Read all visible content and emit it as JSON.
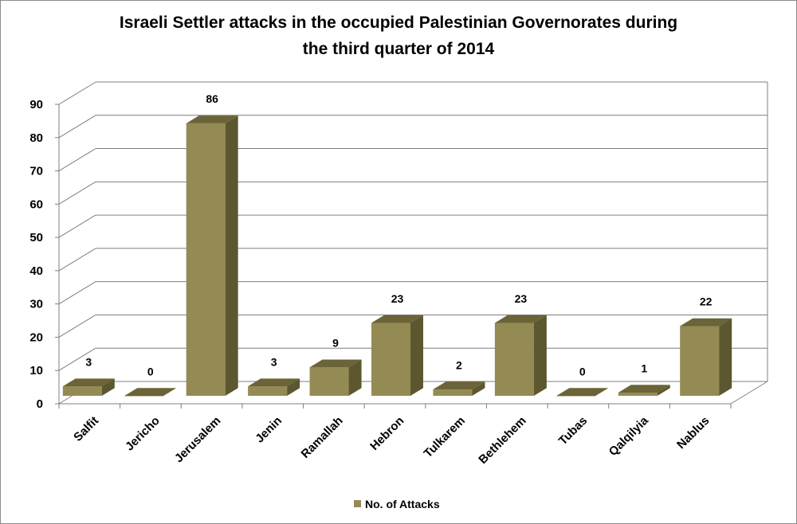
{
  "chart_data": {
    "type": "bar",
    "title_lines": [
      "Israeli Settler attacks in the occupied Palestinian Governorates  during",
      "the third quarter of 2014"
    ],
    "categories": [
      "Salfit",
      "Jericho",
      "Jerusalem",
      "Jenin",
      "Ramallah",
      "Hebron",
      "Tulkarem",
      "Bethlehem",
      "Tubas",
      "Qalqilyia",
      "Nablus"
    ],
    "series": [
      {
        "name": "No. of Attacks",
        "values": [
          3,
          0,
          86,
          3,
          9,
          23,
          2,
          23,
          0,
          1,
          22
        ]
      }
    ],
    "ylim": [
      0,
      90
    ],
    "yticks": [
      0,
      10,
      20,
      30,
      40,
      50,
      60,
      70,
      80,
      90
    ],
    "grid": true,
    "legend_position": "bottom",
    "style": "3d-column",
    "colors": {
      "bar_front": "#948a54",
      "bar_top": "#6b6438",
      "bar_side": "#5d5730",
      "grid": "#7f7f7f"
    }
  }
}
